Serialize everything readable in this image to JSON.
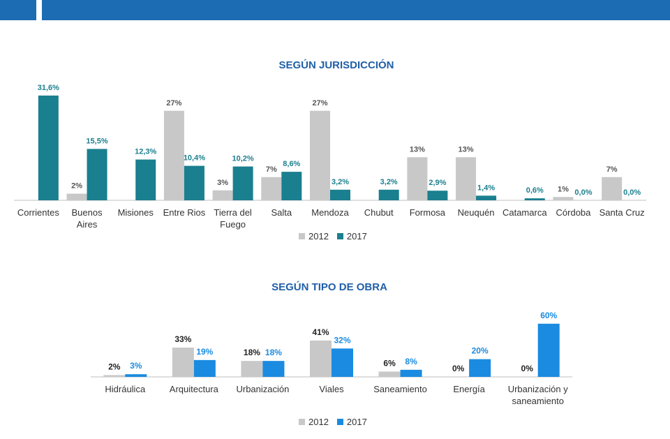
{
  "header": {
    "accent_color": "#1b6cb3"
  },
  "chart_data": [
    {
      "type": "bar",
      "title": "SEGÚN JURISDICCIÓN",
      "categories": [
        "Corrientes",
        "Buenos Aires",
        "Misiones",
        "Entre Rios",
        "Tierra del Fuego",
        "Salta",
        "Mendoza",
        "Chubut",
        "Formosa",
        "Neuquén",
        "Catamarca",
        "Córdoba",
        "Santa Cruz"
      ],
      "category_lines": [
        [
          "Corrientes"
        ],
        [
          "Buenos",
          "Aires"
        ],
        [
          "Misiones"
        ],
        [
          "Entre Rios"
        ],
        [
          "Tierra del",
          "Fuego"
        ],
        [
          "Salta"
        ],
        [
          "Mendoza"
        ],
        [
          "Chubut"
        ],
        [
          "Formosa"
        ],
        [
          "Neuquén"
        ],
        [
          "Catamarca"
        ],
        [
          "Córdoba"
        ],
        [
          "Santa Cruz"
        ]
      ],
      "series": [
        {
          "name": "2012",
          "color": "#c8c8c8",
          "values": [
            null,
            2,
            null,
            27,
            3,
            7,
            27,
            null,
            13,
            13,
            null,
            1,
            7
          ],
          "labels": [
            "",
            "2%",
            "",
            "27%",
            "3%",
            "7%",
            "27%",
            "",
            "13%",
            "13%",
            "",
            "1%",
            "7%"
          ]
        },
        {
          "name": "2017",
          "color": "#1a7f8e",
          "values": [
            31.6,
            15.5,
            12.3,
            10.4,
            10.2,
            8.6,
            3.2,
            3.2,
            2.9,
            1.4,
            0.6,
            0.0,
            0.0
          ],
          "labels": [
            "31,6%",
            "15,5%",
            "12,3%",
            "10,4%",
            "10,2%",
            "8,6%",
            "3,2%",
            "3,2%",
            "2,9%",
            "1,4%",
            "0,6%",
            "0,0%",
            "0,0%"
          ]
        }
      ],
      "legend": "bottom"
    },
    {
      "type": "bar",
      "title": "SEGÚN TIPO DE OBRA",
      "categories": [
        "Hidráulica",
        "Arquitectura",
        "Urbanización",
        "Viales",
        "Saneamiento",
        "Energía",
        "Urbanización y saneamiento"
      ],
      "category_lines": [
        [
          "Hidráulica"
        ],
        [
          "Arquitectura"
        ],
        [
          "Urbanización"
        ],
        [
          "Viales"
        ],
        [
          "Saneamiento"
        ],
        [
          "Energía"
        ],
        [
          "Urbanización y",
          "saneamiento"
        ]
      ],
      "series": [
        {
          "name": "2012",
          "color": "#c8c8c8",
          "values": [
            2,
            33,
            18,
            41,
            6,
            0,
            0
          ],
          "labels": [
            "2%",
            "33%",
            "18%",
            "41%",
            "6%",
            "0%",
            "0%"
          ]
        },
        {
          "name": "2017",
          "color": "#1a8be0",
          "values": [
            3,
            19,
            18,
            32,
            8,
            20,
            60
          ],
          "labels": [
            "3%",
            "19%",
            "18%",
            "32%",
            "8%",
            "20%",
            "60%"
          ]
        }
      ],
      "legend": "bottom"
    }
  ]
}
